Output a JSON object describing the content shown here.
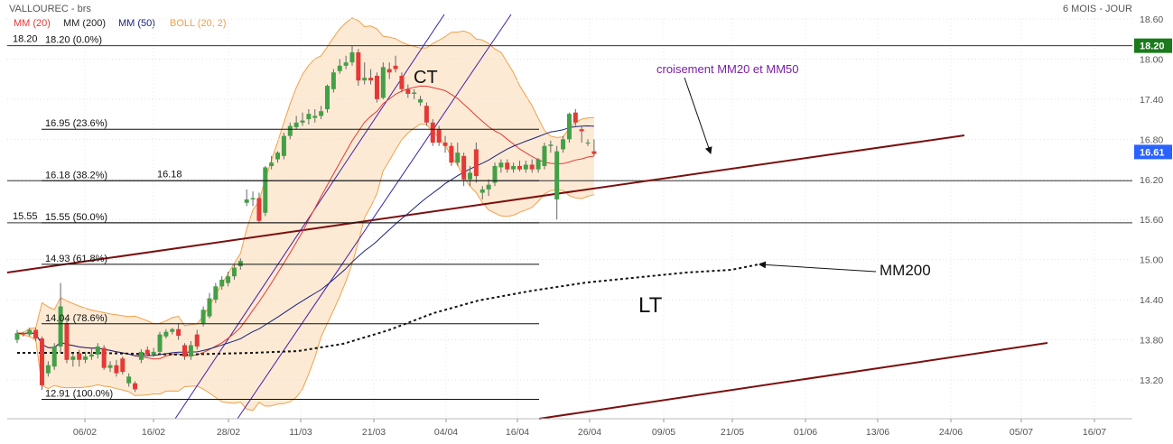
{
  "header": {
    "symbol": "VALLOUREC - brs",
    "period": "6 MOIS - JOUR",
    "legend": [
      {
        "label": "MM (20)",
        "color": "#e53935"
      },
      {
        "label": "MM (200)",
        "color": "#222222"
      },
      {
        "label": "MM (50)",
        "color": "#1a237e"
      },
      {
        "label": "BOLL (20, 2)",
        "color": "#f0a04b"
      }
    ]
  },
  "chart_data": {
    "type": "candlestick",
    "ylim": [
      12.95,
      18.65
    ],
    "yticks": [
      "18.60",
      "18.00",
      "17.40",
      "16.80",
      "16.20",
      "15.60",
      "15.00",
      "14.40",
      "13.80",
      "13.20"
    ],
    "xticks": [
      "06/02",
      "16/02",
      "28/02",
      "11/03",
      "21/03",
      "04/04",
      "16/04",
      "26/04",
      "09/05",
      "21/05",
      "01/06",
      "13/06",
      "24/06",
      "05/07",
      "16/07"
    ],
    "candles": [
      {
        "o": 13.8,
        "c": 13.9,
        "h": 13.95,
        "l": 13.75
      },
      {
        "o": 13.9,
        "c": 13.88,
        "h": 13.92,
        "l": 13.85
      },
      {
        "o": 13.88,
        "c": 13.95,
        "h": 13.98,
        "l": 13.85
      },
      {
        "o": 13.95,
        "c": 13.82,
        "h": 13.98,
        "l": 13.78
      },
      {
        "o": 13.82,
        "c": 13.12,
        "h": 13.85,
        "l": 13.05
      },
      {
        "o": 13.3,
        "c": 13.42,
        "h": 13.48,
        "l": 13.25
      },
      {
        "o": 13.4,
        "c": 13.7,
        "h": 13.75,
        "l": 13.35
      },
      {
        "o": 13.7,
        "c": 14.3,
        "h": 14.65,
        "l": 13.6
      },
      {
        "o": 14.05,
        "c": 13.5,
        "h": 14.1,
        "l": 13.45
      },
      {
        "o": 13.5,
        "c": 13.55,
        "h": 13.6,
        "l": 13.4
      },
      {
        "o": 13.6,
        "c": 13.5,
        "h": 13.65,
        "l": 13.4
      },
      {
        "o": 13.5,
        "c": 13.55,
        "h": 13.62,
        "l": 13.45
      },
      {
        "o": 13.55,
        "c": 13.58,
        "h": 13.68,
        "l": 13.5
      },
      {
        "o": 13.58,
        "c": 13.7,
        "h": 13.75,
        "l": 13.52
      },
      {
        "o": 13.68,
        "c": 13.38,
        "h": 13.72,
        "l": 13.35
      },
      {
        "o": 13.38,
        "c": 13.42,
        "h": 13.48,
        "l": 13.32
      },
      {
        "o": 13.42,
        "c": 13.3,
        "h": 13.5,
        "l": 13.25
      },
      {
        "o": 13.52,
        "c": 13.32,
        "h": 13.55,
        "l": 13.28
      },
      {
        "o": 13.15,
        "c": 13.25,
        "h": 13.3,
        "l": 13.1
      },
      {
        "o": 13.15,
        "c": 13.06,
        "h": 13.18,
        "l": 13.02
      },
      {
        "o": 13.5,
        "c": 13.62,
        "h": 13.66,
        "l": 13.45
      },
      {
        "o": 13.65,
        "c": 13.58,
        "h": 13.7,
        "l": 13.55
      },
      {
        "o": 13.58,
        "c": 13.62,
        "h": 13.68,
        "l": 13.55
      },
      {
        "o": 13.62,
        "c": 13.88,
        "h": 13.92,
        "l": 13.58
      },
      {
        "o": 13.85,
        "c": 13.92,
        "h": 13.96,
        "l": 13.82
      },
      {
        "o": 13.92,
        "c": 13.96,
        "h": 13.98,
        "l": 13.88
      },
      {
        "o": 13.96,
        "c": 13.86,
        "h": 14.05,
        "l": 13.8
      },
      {
        "o": 13.72,
        "c": 13.55,
        "h": 13.75,
        "l": 13.5
      },
      {
        "o": 13.55,
        "c": 13.72,
        "h": 13.78,
        "l": 13.5
      },
      {
        "o": 13.88,
        "c": 13.7,
        "h": 13.95,
        "l": 13.65
      },
      {
        "o": 14.05,
        "c": 14.25,
        "h": 14.3,
        "l": 14.0
      },
      {
        "o": 14.15,
        "c": 14.42,
        "h": 14.5,
        "l": 14.12
      },
      {
        "o": 14.4,
        "c": 14.6,
        "h": 14.65,
        "l": 14.35
      },
      {
        "o": 14.6,
        "c": 14.7,
        "h": 14.75,
        "l": 14.55
      },
      {
        "o": 14.65,
        "c": 14.75,
        "h": 14.82,
        "l": 14.6
      },
      {
        "o": 14.75,
        "c": 14.88,
        "h": 14.92,
        "l": 14.7
      },
      {
        "o": 14.9,
        "c": 14.98,
        "h": 15.02,
        "l": 14.85
      },
      {
        "o": 15.85,
        "c": 15.9,
        "h": 16.05,
        "l": 15.8
      },
      {
        "o": 15.9,
        "c": 15.92,
        "h": 16.02,
        "l": 15.8
      },
      {
        "o": 15.92,
        "c": 15.58,
        "h": 16.0,
        "l": 15.55
      },
      {
        "o": 15.7,
        "c": 16.38,
        "h": 16.4,
        "l": 15.65
      },
      {
        "o": 16.4,
        "c": 16.45,
        "h": 16.55,
        "l": 16.35
      },
      {
        "o": 16.5,
        "c": 16.6,
        "h": 16.62,
        "l": 16.45
      },
      {
        "o": 16.55,
        "c": 16.85,
        "h": 16.9,
        "l": 16.5
      },
      {
        "o": 16.85,
        "c": 17.0,
        "h": 17.05,
        "l": 16.8
      },
      {
        "o": 16.98,
        "c": 17.05,
        "h": 17.15,
        "l": 16.95
      },
      {
        "o": 17.05,
        "c": 17.08,
        "h": 17.2,
        "l": 17.0
      },
      {
        "o": 17.1,
        "c": 17.18,
        "h": 17.25,
        "l": 17.02
      },
      {
        "o": 17.12,
        "c": 17.15,
        "h": 17.25,
        "l": 17.05
      },
      {
        "o": 17.15,
        "c": 17.22,
        "h": 17.3,
        "l": 17.1
      },
      {
        "o": 17.25,
        "c": 17.6,
        "h": 17.62,
        "l": 17.2
      },
      {
        "o": 17.55,
        "c": 17.8,
        "h": 17.85,
        "l": 17.5
      },
      {
        "o": 17.82,
        "c": 17.9,
        "h": 18.0,
        "l": 17.78
      },
      {
        "o": 17.9,
        "c": 17.95,
        "h": 18.05,
        "l": 17.85
      },
      {
        "o": 17.95,
        "c": 18.1,
        "h": 18.2,
        "l": 17.9
      },
      {
        "o": 18.1,
        "c": 17.68,
        "h": 18.15,
        "l": 17.6
      },
      {
        "o": 17.68,
        "c": 17.72,
        "h": 17.95,
        "l": 17.62
      },
      {
        "o": 17.72,
        "c": 17.68,
        "h": 17.85,
        "l": 17.62
      },
      {
        "o": 17.75,
        "c": 17.4,
        "h": 17.8,
        "l": 17.35
      },
      {
        "o": 17.42,
        "c": 17.88,
        "h": 17.95,
        "l": 17.4
      },
      {
        "o": 17.85,
        "c": 17.8,
        "h": 17.95,
        "l": 17.7
      },
      {
        "o": 17.9,
        "c": 17.85,
        "h": 18.05,
        "l": 17.8
      },
      {
        "o": 17.75,
        "c": 17.55,
        "h": 17.8,
        "l": 17.5
      },
      {
        "o": 17.55,
        "c": 17.48,
        "h": 17.62,
        "l": 17.42
      },
      {
        "o": 17.48,
        "c": 17.5,
        "h": 17.55,
        "l": 17.4
      },
      {
        "o": 17.35,
        "c": 17.4,
        "h": 17.45,
        "l": 17.3
      },
      {
        "o": 17.3,
        "c": 17.05,
        "h": 17.35,
        "l": 17.0
      },
      {
        "o": 17.05,
        "c": 16.75,
        "h": 17.1,
        "l": 16.7
      },
      {
        "o": 16.95,
        "c": 16.75,
        "h": 17.0,
        "l": 16.7
      },
      {
        "o": 16.75,
        "c": 16.7,
        "h": 16.85,
        "l": 16.6
      },
      {
        "o": 16.7,
        "c": 16.45,
        "h": 16.75,
        "l": 16.4
      },
      {
        "o": 16.45,
        "c": 16.6,
        "h": 16.75,
        "l": 16.4
      },
      {
        "o": 16.55,
        "c": 16.2,
        "h": 16.6,
        "l": 16.1
      },
      {
        "o": 16.2,
        "c": 16.3,
        "h": 16.4,
        "l": 16.1
      },
      {
        "o": 16.65,
        "c": 16.25,
        "h": 16.75,
        "l": 16.15
      },
      {
        "o": 16.0,
        "c": 16.05,
        "h": 16.1,
        "l": 15.9
      },
      {
        "o": 16.05,
        "c": 16.12,
        "h": 16.2,
        "l": 15.95
      },
      {
        "o": 16.15,
        "c": 16.4,
        "h": 16.45,
        "l": 16.1
      },
      {
        "o": 16.38,
        "c": 16.45,
        "h": 16.5,
        "l": 16.3
      },
      {
        "o": 16.45,
        "c": 16.35,
        "h": 16.5,
        "l": 16.3
      },
      {
        "o": 16.35,
        "c": 16.4,
        "h": 16.45,
        "l": 16.3
      },
      {
        "o": 16.4,
        "c": 16.35,
        "h": 16.48,
        "l": 16.32
      },
      {
        "o": 16.35,
        "c": 16.42,
        "h": 16.48,
        "l": 16.3
      },
      {
        "o": 16.42,
        "c": 16.35,
        "h": 16.5,
        "l": 16.3
      },
      {
        "o": 16.35,
        "c": 16.5,
        "h": 16.52,
        "l": 16.3
      },
      {
        "o": 16.4,
        "c": 16.7,
        "h": 16.75,
        "l": 16.35
      },
      {
        "o": 16.7,
        "c": 16.72,
        "h": 16.78,
        "l": 16.6
      },
      {
        "o": 15.9,
        "c": 16.62,
        "h": 16.7,
        "l": 15.6
      },
      {
        "o": 16.65,
        "c": 16.8,
        "h": 16.85,
        "l": 16.6
      },
      {
        "o": 16.8,
        "c": 17.18,
        "h": 17.2,
        "l": 16.75
      },
      {
        "o": 17.2,
        "c": 17.05,
        "h": 17.25,
        "l": 17.0
      },
      {
        "o": 16.95,
        "c": 16.92,
        "h": 17.0,
        "l": 16.75
      },
      {
        "o": 16.75,
        "c": 16.75,
        "h": 16.8,
        "l": 16.7
      },
      {
        "o": 16.62,
        "c": 16.58,
        "h": 16.8,
        "l": 16.55
      }
    ],
    "fibonacci": [
      {
        "label": "18.20  (0.0%)",
        "value": 18.2
      },
      {
        "label": "16.95  (23.6%)",
        "value": 16.95
      },
      {
        "label": "16.18  (38.2%)",
        "value": 16.18
      },
      {
        "label": "15.55  (50.0%)",
        "value": 15.55
      },
      {
        "label": "14.93  (61.8%)",
        "value": 14.93
      },
      {
        "label": "14.04  (78.6%)",
        "value": 14.04
      },
      {
        "label": "12.91  (100.0%)",
        "value": 12.91
      }
    ],
    "level_markers": [
      {
        "label": "18.20",
        "value": 18.2
      },
      {
        "label": "15.55",
        "value": 15.55
      },
      {
        "label": "16.18",
        "value": 16.18
      }
    ],
    "price_tags": [
      {
        "label": "18.20",
        "value": 18.2,
        "color": "#1b7a1b"
      },
      {
        "label": "16.61",
        "value": 16.61,
        "color": "#2962ff"
      }
    ],
    "annotations": {
      "ct": "CT",
      "lt": "LT",
      "mm200": "MM200",
      "cross": "croisement MM20 et MM50"
    }
  }
}
